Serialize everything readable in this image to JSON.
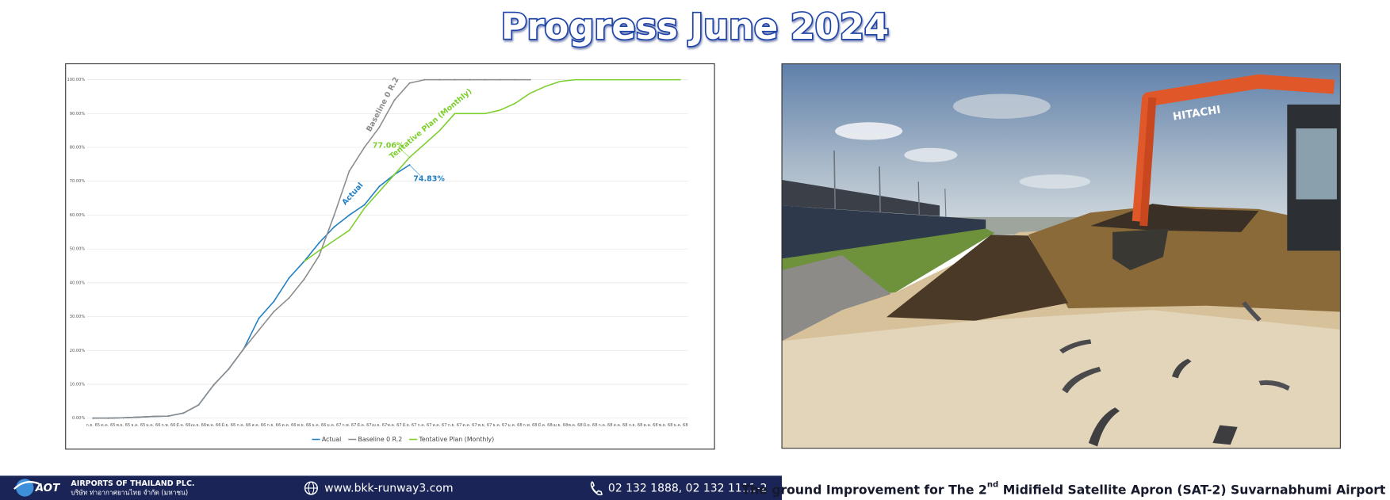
{
  "header": {
    "title": "Progress June 2024"
  },
  "chart_data": {
    "type": "line",
    "categories": [
      "ก.ย. 65",
      "ต.ค. 65",
      "พ.ย. 65",
      "ธ.ค. 65",
      "ม.ค. 66",
      "ก.พ. 66",
      "มี.ค. 66",
      "เม.ย. 66",
      "พ.ค. 66",
      "มิ.ย. 66",
      "ก.ค. 66",
      "ส.ค. 66",
      "ก.ย. 66",
      "ต.ค. 66",
      "พ.ย. 66",
      "ธ.ค. 66",
      "ม.ค. 67",
      "ก.พ. 67",
      "มี.ค. 67",
      "เม.ย. 67",
      "พ.ค. 67",
      "มิ.ย. 67",
      "ก.ค. 67",
      "ส.ค. 67",
      "ก.ย. 67",
      "ต.ค. 67",
      "พ.ย. 67",
      "ธ.ค. 67",
      "ม.ค. 68",
      "ก.พ. 68",
      "มี.ค. 68",
      "เม.ย. 68",
      "พ.ค. 68",
      "มิ.ย. 68",
      "ก.ค. 68",
      "ส.ค. 68",
      "ก.ย. 68",
      "ต.ค. 68",
      "พ.ย. 68",
      "ธ.ค. 68"
    ],
    "series": [
      {
        "name": "Actual",
        "color": "#1f7fc4",
        "values": [
          0,
          0,
          0.1,
          0.3,
          0.5,
          0.6,
          1.5,
          3.9,
          9.8,
          14.5,
          20.5,
          29.5,
          34.5,
          41.4,
          46.3,
          51.8,
          56.5,
          60,
          63,
          68.5,
          72,
          74.83,
          null,
          null,
          null,
          null,
          null,
          null,
          null,
          null,
          null,
          null,
          null,
          null,
          null,
          null,
          null,
          null,
          null,
          null
        ],
        "value_labels": [
          null,
          null,
          null,
          null,
          null,
          null,
          null,
          null,
          null,
          null,
          null,
          null,
          null,
          null,
          null,
          null,
          null,
          null,
          null,
          null,
          null,
          "74.83%",
          null,
          null,
          null,
          null,
          null,
          null,
          null,
          null,
          null,
          null,
          null,
          null,
          null,
          null,
          null,
          null,
          null,
          null
        ]
      },
      {
        "name": "Baseline 0 R.2",
        "color": "#8c8c8c",
        "values": [
          0,
          0,
          0.1,
          0.3,
          0.5,
          0.6,
          1.5,
          3.9,
          9.8,
          14.5,
          20.5,
          26,
          31.5,
          35.5,
          41,
          48,
          60,
          73,
          80,
          86,
          94,
          99,
          100,
          100,
          100,
          100,
          100,
          100,
          100,
          100,
          null,
          null,
          null,
          null,
          null,
          null,
          null,
          null,
          null,
          null
        ]
      },
      {
        "name": "Tentative Plan (Monthly)",
        "color": "#7ccf2c",
        "values": [
          null,
          null,
          null,
          null,
          null,
          null,
          null,
          null,
          null,
          null,
          null,
          null,
          null,
          null,
          46.3,
          49.5,
          52.5,
          55.5,
          62,
          67,
          72,
          77.06,
          81,
          85,
          90,
          90,
          90,
          91,
          93,
          96,
          98,
          99.5,
          100,
          100,
          100,
          100,
          100,
          100,
          100,
          100
        ],
        "value_labels": [
          null,
          null,
          null,
          null,
          null,
          null,
          null,
          null,
          null,
          null,
          null,
          null,
          null,
          null,
          null,
          null,
          null,
          null,
          null,
          null,
          null,
          "77.06%",
          null,
          null,
          null,
          null,
          null,
          null,
          null,
          null,
          null,
          null,
          null,
          null,
          null,
          null,
          null,
          null,
          null,
          null
        ]
      }
    ],
    "ylim": [
      0,
      100
    ],
    "yticks": [
      {
        "value": 0,
        "label": "0.00%"
      },
      {
        "value": 10,
        "label": "10.00%"
      },
      {
        "value": 20,
        "label": "20.00%"
      },
      {
        "value": 30,
        "label": "30.00%"
      },
      {
        "value": 40,
        "label": "40.00%"
      },
      {
        "value": 50,
        "label": "50.00%"
      },
      {
        "value": 60,
        "label": "60.00%"
      },
      {
        "value": 70,
        "label": "70.00%"
      },
      {
        "value": 80,
        "label": "80.00%"
      },
      {
        "value": 90,
        "label": "90.00%"
      },
      {
        "value": 100,
        "label": "100.00%"
      }
    ],
    "grid": true,
    "legend": "bottom"
  },
  "photo": {
    "sign": "HITACHI"
  },
  "footer": {
    "logo": "AOT",
    "company_en": "AIRPORTS OF THAILAND PLC.",
    "company_th": "บริษัท ท่าอากาศยานไทย จำกัด (มหาชน)",
    "website": "www.bkk-runway3.com",
    "phone": "02 132 1888, 02 132 1111-2",
    "caption": [
      "The ground Improvement for The 2",
      "nd",
      "Midifield Satellite Apron (SAT-2) Suvarnabhumi Airport"
    ]
  }
}
